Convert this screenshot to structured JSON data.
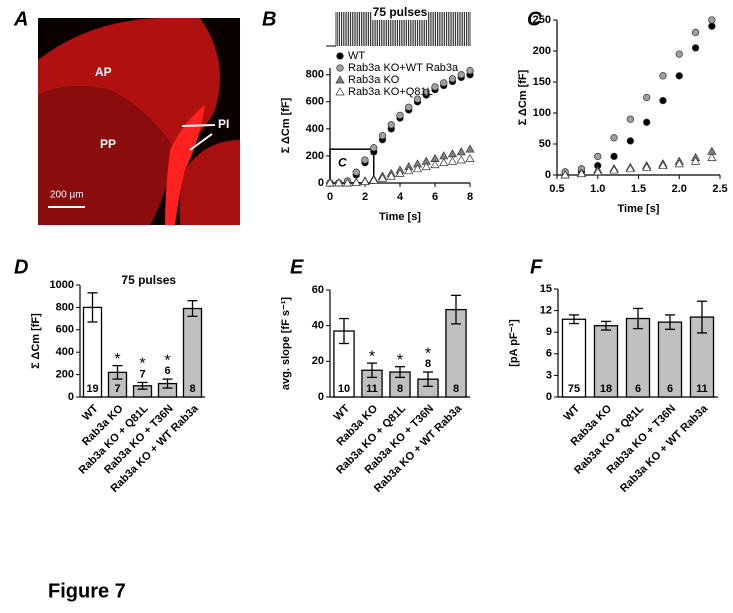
{
  "figure_title": "Figure 7",
  "image_panel": {
    "panel_label": "A",
    "labels": [
      "AP",
      "PP",
      "PI"
    ],
    "scale_bar": "200 µm"
  },
  "chart_data": [
    {
      "type": "scatter",
      "panel_label": "B",
      "x_label": "Time [s]",
      "y_label": "Σ ΔCm [fF]",
      "stimulus": {
        "label": "75 pulses",
        "pulse_count": 75
      },
      "inset_box": {
        "label": "C",
        "x": [
          0,
          2.5
        ],
        "y": [
          0,
          250
        ]
      },
      "legend": "upper left",
      "zero_line": false,
      "xlim": [
        0,
        8
      ],
      "xticks": [
        0,
        2,
        4,
        6,
        8
      ],
      "ylim": [
        0,
        850
      ],
      "yticks": [
        0,
        200,
        400,
        600,
        800
      ],
      "x": [
        0,
        0.5,
        1,
        1.5,
        2,
        2.5,
        3,
        3.5,
        4,
        4.5,
        5,
        5.5,
        6,
        6.5,
        7,
        7.5,
        8
      ],
      "series": [
        {
          "name": "WT",
          "color": "#000000",
          "marker": "circle",
          "values": [
            0,
            0,
            10,
            60,
            150,
            230,
            320,
            400,
            480,
            540,
            600,
            650,
            690,
            720,
            750,
            780,
            800
          ]
        },
        {
          "name": "Rab3a KO+WT Rab3a",
          "color": "#a0a0a0",
          "marker": "circle",
          "values": [
            0,
            0,
            15,
            80,
            170,
            260,
            350,
            430,
            500,
            560,
            620,
            670,
            710,
            740,
            770,
            800,
            830
          ]
        },
        {
          "name": "Rab3a KO",
          "color": "#808080",
          "marker": "triangle",
          "values": [
            0,
            0,
            0,
            5,
            15,
            30,
            50,
            70,
            95,
            120,
            140,
            160,
            180,
            200,
            215,
            230,
            250
          ]
        },
        {
          "name": "Rab3a KO+Q81L",
          "color": "#ffffff",
          "marker": "triangle",
          "values": [
            0,
            0,
            0,
            3,
            10,
            20,
            35,
            50,
            70,
            90,
            105,
            120,
            135,
            150,
            160,
            170,
            180
          ]
        }
      ]
    },
    {
      "type": "scatter",
      "panel_label": "C",
      "x_label": "Time [s]",
      "y_label": "Σ ΔCm [fF]",
      "legend": false,
      "zero_line": true,
      "xlim": [
        0.5,
        2.5
      ],
      "xticks": [
        0.5,
        {
          "value": 1,
          "label": "1.0"
        },
        1.5,
        {
          "value": 2,
          "label": "2.0"
        },
        2.5
      ],
      "ylim": [
        0,
        250
      ],
      "yticks": [
        0,
        50,
        100,
        150,
        200,
        250
      ],
      "x": [
        0.6,
        0.8,
        1.0,
        1.2,
        1.4,
        1.6,
        1.8,
        2.0,
        2.2,
        2.4
      ],
      "series": [
        {
          "name": "WT",
          "color": "#000000",
          "marker": "circle",
          "values": [
            0,
            5,
            15,
            30,
            55,
            85,
            120,
            160,
            205,
            240
          ]
        },
        {
          "name": "Rab3a KO+WT Rab3a",
          "color": "#a0a0a0",
          "marker": "circle",
          "values": [
            5,
            10,
            30,
            60,
            90,
            125,
            160,
            195,
            230,
            250
          ]
        },
        {
          "name": "Rab3a KO",
          "color": "#808080",
          "marker": "triangle",
          "values": [
            0,
            3,
            8,
            10,
            12,
            15,
            18,
            22,
            28,
            38
          ]
        },
        {
          "name": "Rab3a KO+Q81L",
          "color": "#ffffff",
          "marker": "triangle",
          "values": [
            0,
            2,
            5,
            8,
            10,
            12,
            15,
            18,
            22,
            28
          ]
        }
      ]
    },
    {
      "type": "bar",
      "panel_label": "D",
      "title": "75 pulses",
      "y_label": "Σ ΔCm [fF]",
      "categories": [
        "WT",
        "Rab3a KO",
        "Rab3a KO + Q81L",
        "Rab3a KO + T36N",
        "Rab3a KO + WT Rab3a"
      ],
      "values": [
        800,
        220,
        100,
        120,
        790
      ],
      "errors": [
        130,
        60,
        30,
        40,
        70
      ],
      "n_labels": [
        19,
        7,
        7,
        6,
        8
      ],
      "marker_labels": [
        null,
        "*",
        "*",
        "*",
        null
      ],
      "colors": [
        "#ffffff",
        "#c0c0c0",
        "#c0c0c0",
        "#c0c0c0",
        "#c0c0c0"
      ],
      "ylim": [
        0,
        1000
      ],
      "yticks": [
        0,
        200,
        400,
        600,
        800,
        1000
      ]
    },
    {
      "type": "bar",
      "panel_label": "E",
      "y_label": "avg. slope [fF s⁻¹]",
      "categories": [
        "WT",
        "Rab3a KO",
        "Rab3a KO + Q81L",
        "Rab3a KO + T36N",
        "Rab3a KO + WT Rab3a"
      ],
      "values": [
        37,
        15,
        14,
        10,
        49
      ],
      "errors": [
        7,
        4,
        3,
        4,
        8
      ],
      "n_labels": [
        10,
        11,
        8,
        8,
        8
      ],
      "marker_labels": [
        null,
        "*",
        "*",
        "*",
        null
      ],
      "colors": [
        "#ffffff",
        "#c0c0c0",
        "#c0c0c0",
        "#c0c0c0",
        "#c0c0c0"
      ],
      "ylim": [
        0,
        60
      ],
      "yticks": [
        0,
        20,
        40,
        60
      ]
    },
    {
      "type": "bar",
      "panel_label": "F",
      "y_label": "[pA pF⁻¹]",
      "categories": [
        "WT",
        "Rab3a KO",
        "Rab3a KO + Q81L",
        "Rab3a KO + T36N",
        "Rab3a KO + WT Rab3a"
      ],
      "values": [
        10.8,
        9.9,
        10.9,
        10.4,
        11.1
      ],
      "errors": [
        0.6,
        0.6,
        1.4,
        1.0,
        2.2
      ],
      "n_labels": [
        75,
        18,
        6,
        6,
        11
      ],
      "marker_labels": [
        null,
        null,
        null,
        null,
        null
      ],
      "colors": [
        "#ffffff",
        "#c0c0c0",
        "#c0c0c0",
        "#c0c0c0",
        "#c0c0c0"
      ],
      "ylim": [
        0,
        15
      ],
      "yticks": [
        0,
        3,
        6,
        9,
        12,
        15
      ]
    }
  ]
}
